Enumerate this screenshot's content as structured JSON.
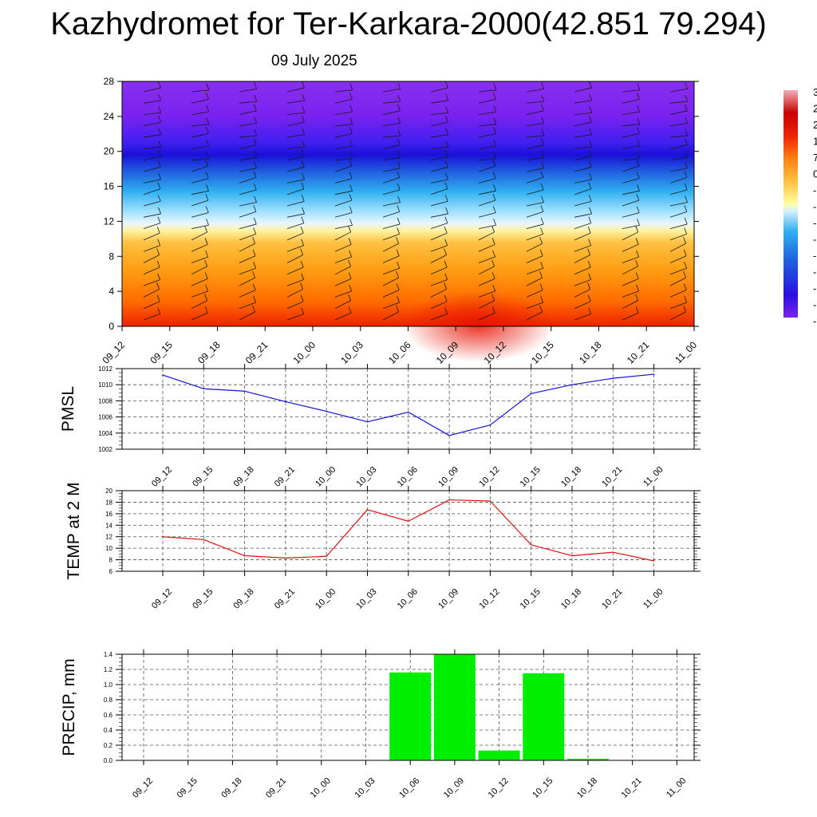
{
  "title": "Kazhydromet for Ter-Karkara-2000(42.851 79.294)",
  "subtitle": "09 July 2025",
  "colors": {
    "pmsl_line": "#1010e0",
    "temp_line": "#e01010",
    "precip_bar": "#00ee00",
    "grid": "#555555"
  },
  "cross_section": {
    "type": "heatmap",
    "yticks": [
      "0",
      "4",
      "8",
      "12",
      "16",
      "20",
      "24",
      "28"
    ],
    "ylim": [
      0,
      28
    ],
    "xticks": [
      "09_12",
      "09_15",
      "09_18",
      "09_21",
      "10_00",
      "10_03",
      "10_06",
      "10_09",
      "10_12",
      "10_15",
      "10_18",
      "10_21",
      "11_00"
    ],
    "colorbar_labels": [
      "3",
      "2",
      "2",
      "1",
      "7",
      "0",
      "-",
      "-",
      "-",
      "-",
      "-",
      "-",
      "-",
      "-",
      "-"
    ]
  },
  "chart_data": [
    {
      "type": "line",
      "ylabel": "PMSL",
      "x": [
        "09_12",
        "09_15",
        "09_18",
        "09_21",
        "10_00",
        "10_03",
        "10_06",
        "10_09",
        "10_12",
        "10_15",
        "10_18",
        "10_21",
        "11_00"
      ],
      "values": [
        1011.2,
        1009.5,
        1009.2,
        1007.9,
        1006.7,
        1005.4,
        1006.6,
        1003.7,
        1005.0,
        1008.9,
        1010.0,
        1010.8,
        1011.3
      ],
      "ylim": [
        1002,
        1012
      ],
      "yticks": [
        "1002",
        "1004",
        "1006",
        "1008",
        "1010",
        "1012"
      ],
      "grid": true
    },
    {
      "type": "line",
      "ylabel": "TEMP at 2 M",
      "x": [
        "09_12",
        "09_15",
        "09_18",
        "09_21",
        "10_00",
        "10_03",
        "10_06",
        "10_09",
        "10_12",
        "10_15",
        "10_18",
        "10_21",
        "11_00"
      ],
      "values": [
        12.0,
        11.5,
        8.7,
        8.3,
        8.6,
        16.7,
        14.7,
        18.4,
        18.2,
        10.6,
        8.7,
        9.3,
        7.8
      ],
      "ylim": [
        6,
        20
      ],
      "yticks": [
        "6",
        "8",
        "10",
        "12",
        "14",
        "16",
        "18",
        "20"
      ],
      "grid": true
    },
    {
      "type": "bar",
      "ylabel": "PRECIP, mm",
      "categories": [
        "09_12",
        "09_15",
        "09_18",
        "09_21",
        "10_00",
        "10_03",
        "10_06",
        "10_09",
        "10_12",
        "10_15",
        "10_18",
        "10_21",
        "11_00"
      ],
      "values": [
        0,
        0,
        0,
        0,
        0,
        0,
        1.16,
        1.4,
        0.13,
        1.15,
        0.02,
        0,
        0
      ],
      "ylim": [
        0,
        1.4
      ],
      "yticks": [
        "0.0",
        "0.2",
        "0.4",
        "0.6",
        "0.8",
        "1.0",
        "1.2",
        "1.4"
      ],
      "grid": true
    }
  ]
}
